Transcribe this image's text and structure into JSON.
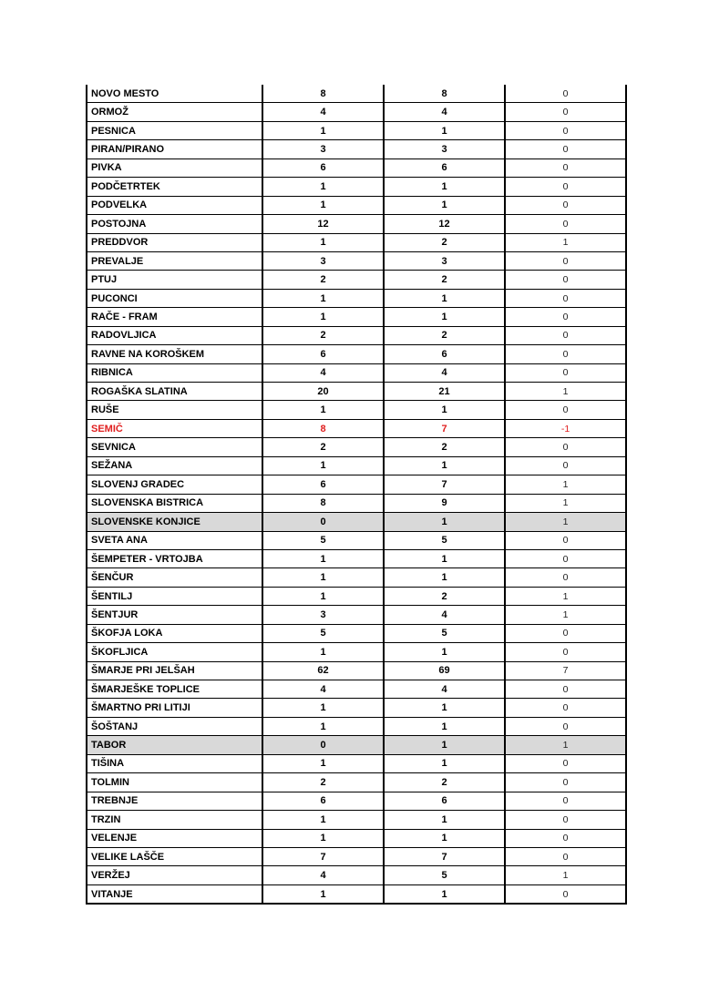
{
  "colors": {
    "highlight_row": "#d9d9d9",
    "negative_text": "#e02020"
  },
  "rows": [
    {
      "name": "NOVO MESTO",
      "a": "8",
      "b": "8",
      "diff": "0"
    },
    {
      "name": "ORMOŽ",
      "a": "4",
      "b": "4",
      "diff": "0"
    },
    {
      "name": "PESNICA",
      "a": "1",
      "b": "1",
      "diff": "0"
    },
    {
      "name": "PIRAN/PIRANO",
      "a": "3",
      "b": "3",
      "diff": "0"
    },
    {
      "name": "PIVKA",
      "a": "6",
      "b": "6",
      "diff": "0"
    },
    {
      "name": "PODČETRTEK",
      "a": "1",
      "b": "1",
      "diff": "0"
    },
    {
      "name": "PODVELKA",
      "a": "1",
      "b": "1",
      "diff": "0"
    },
    {
      "name": "POSTOJNA",
      "a": "12",
      "b": "12",
      "diff": "0"
    },
    {
      "name": "PREDDVOR",
      "a": "1",
      "b": "2",
      "diff": "1"
    },
    {
      "name": "PREVALJE",
      "a": "3",
      "b": "3",
      "diff": "0"
    },
    {
      "name": "PTUJ",
      "a": "2",
      "b": "2",
      "diff": "0"
    },
    {
      "name": "PUCONCI",
      "a": "1",
      "b": "1",
      "diff": "0"
    },
    {
      "name": "RAČE - FRAM",
      "a": "1",
      "b": "1",
      "diff": "0"
    },
    {
      "name": "RADOVLJICA",
      "a": "2",
      "b": "2",
      "diff": "0"
    },
    {
      "name": "RAVNE NA KOROŠKEM",
      "a": "6",
      "b": "6",
      "diff": "0"
    },
    {
      "name": "RIBNICA",
      "a": "4",
      "b": "4",
      "diff": "0"
    },
    {
      "name": "ROGAŠKA SLATINA",
      "a": "20",
      "b": "21",
      "diff": "1"
    },
    {
      "name": "RUŠE",
      "a": "1",
      "b": "1",
      "diff": "0"
    },
    {
      "name": "SEMIČ",
      "a": "8",
      "b": "7",
      "diff": "-1",
      "style": "red"
    },
    {
      "name": "SEVNICA",
      "a": "2",
      "b": "2",
      "diff": "0"
    },
    {
      "name": "SEŽANA",
      "a": "1",
      "b": "1",
      "diff": "0"
    },
    {
      "name": "SLOVENJ GRADEC",
      "a": "6",
      "b": "7",
      "diff": "1"
    },
    {
      "name": "SLOVENSKA BISTRICA",
      "a": "8",
      "b": "9",
      "diff": "1"
    },
    {
      "name": "SLOVENSKE KONJICE",
      "a": "0",
      "b": "1",
      "diff": "1",
      "style": "gray"
    },
    {
      "name": "SVETA ANA",
      "a": "5",
      "b": "5",
      "diff": "0"
    },
    {
      "name": "ŠEMPETER - VRTOJBA",
      "a": "1",
      "b": "1",
      "diff": "0"
    },
    {
      "name": "ŠENČUR",
      "a": "1",
      "b": "1",
      "diff": "0"
    },
    {
      "name": "ŠENTILJ",
      "a": "1",
      "b": "2",
      "diff": "1"
    },
    {
      "name": "ŠENTJUR",
      "a": "3",
      "b": "4",
      "diff": "1"
    },
    {
      "name": "ŠKOFJA LOKA",
      "a": "5",
      "b": "5",
      "diff": "0"
    },
    {
      "name": "ŠKOFLJICA",
      "a": "1",
      "b": "1",
      "diff": "0"
    },
    {
      "name": "ŠMARJE PRI JELŠAH",
      "a": "62",
      "b": "69",
      "diff": "7"
    },
    {
      "name": "ŠMARJEŠKE TOPLICE",
      "a": "4",
      "b": "4",
      "diff": "0"
    },
    {
      "name": "ŠMARTNO PRI LITIJI",
      "a": "1",
      "b": "1",
      "diff": "0"
    },
    {
      "name": "ŠOŠTANJ",
      "a": "1",
      "b": "1",
      "diff": "0"
    },
    {
      "name": "TABOR",
      "a": "0",
      "b": "1",
      "diff": "1",
      "style": "gray"
    },
    {
      "name": "TIŠINA",
      "a": "1",
      "b": "1",
      "diff": "0"
    },
    {
      "name": "TOLMIN",
      "a": "2",
      "b": "2",
      "diff": "0"
    },
    {
      "name": "TREBNJE",
      "a": "6",
      "b": "6",
      "diff": "0"
    },
    {
      "name": "TRZIN",
      "a": "1",
      "b": "1",
      "diff": "0"
    },
    {
      "name": "VELENJE",
      "a": "1",
      "b": "1",
      "diff": "0"
    },
    {
      "name": "VELIKE LAŠČE",
      "a": "7",
      "b": "7",
      "diff": "0"
    },
    {
      "name": "VERŽEJ",
      "a": "4",
      "b": "5",
      "diff": "1"
    },
    {
      "name": "VITANJE",
      "a": "1",
      "b": "1",
      "diff": "0"
    }
  ]
}
